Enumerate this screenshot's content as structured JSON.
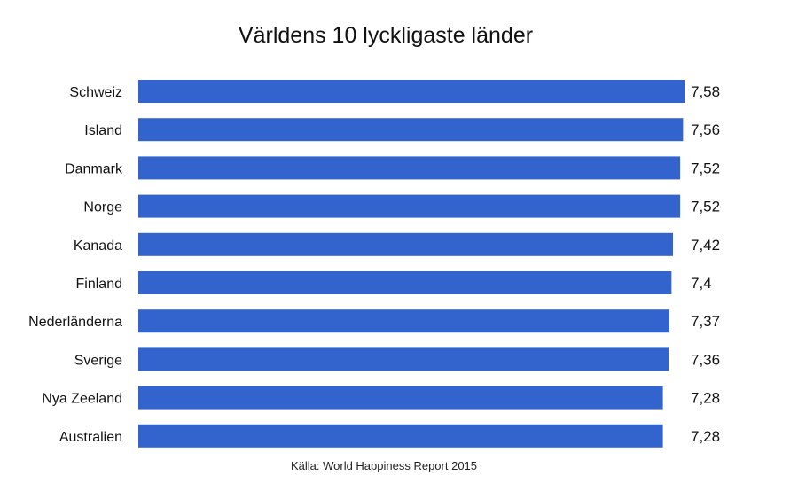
{
  "chart_data": {
    "type": "bar",
    "orientation": "horizontal",
    "title": "Världens 10 lyckligaste länder",
    "categories": [
      "Schweiz",
      "Island",
      "Danmark",
      "Norge",
      "Kanada",
      "Finland",
      "Nederländerna",
      "Sverige",
      "Nya  Zeeland",
      "Australien"
    ],
    "values": [
      7.58,
      7.56,
      7.52,
      7.52,
      7.42,
      7.4,
      7.37,
      7.36,
      7.28,
      7.28
    ],
    "value_labels": [
      "7,58",
      "7,56",
      "7,52",
      "7,52",
      "7,42",
      "7,4",
      "7,37",
      "7,36",
      "7,28",
      "7,28"
    ],
    "xlabel": "",
    "ylabel": "",
    "grid": false,
    "legend": "none",
    "bar_color": "#3364CD",
    "note": "Källa: World Happiness Report 2015"
  }
}
